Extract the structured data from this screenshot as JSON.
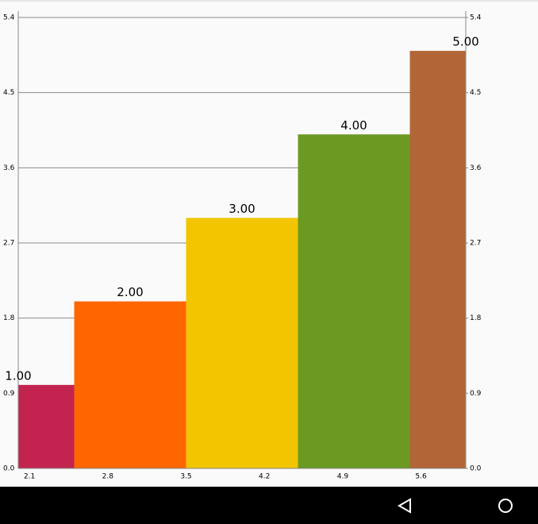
{
  "chart_data": {
    "type": "bar",
    "x": [
      2,
      3,
      4,
      5,
      6
    ],
    "values": [
      1,
      2,
      3,
      4,
      5
    ],
    "value_labels": [
      "1.00",
      "2.00",
      "3.00",
      "4.00",
      "5.00"
    ],
    "colors": [
      "#c2244f",
      "#ff6600",
      "#f2c500",
      "#6b9a22",
      "#b26637"
    ],
    "bar_width": 1,
    "xlim": [
      2,
      6
    ],
    "xticks": [
      2.1,
      2.8,
      3.5,
      4.2,
      4.9,
      5.6
    ],
    "ylim": [
      0,
      5.4
    ],
    "yticks": [
      {
        "value": 0,
        "label": "0.0"
      },
      0.9,
      1.8,
      2.7,
      3.6,
      4.5,
      5.4
    ],
    "y2lim": [
      0,
      5.4
    ],
    "y2ticks": [
      {
        "value": 0,
        "label": "0.0"
      },
      0.9,
      1.8,
      2.7,
      3.6,
      4.5,
      5.4
    ],
    "grid": true
  }
}
